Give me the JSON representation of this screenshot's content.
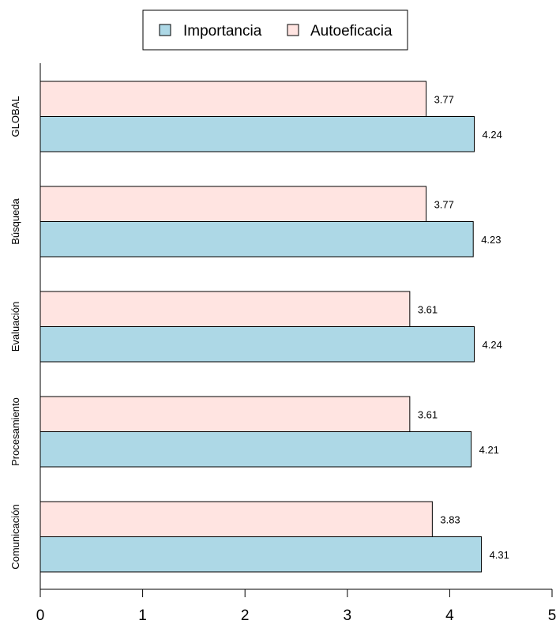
{
  "chart_data": {
    "type": "bar",
    "orientation": "horizontal",
    "categories": [
      "Comunicación",
      "Procesamiento",
      "Evaluación",
      "Búsqueda",
      "GLOBAL"
    ],
    "series": [
      {
        "name": "Importancia",
        "color": "#add8e6",
        "values": [
          4.31,
          4.21,
          4.24,
          4.23,
          4.24
        ]
      },
      {
        "name": "Autoeficacia",
        "color": "#ffe4e1",
        "values": [
          3.83,
          3.61,
          3.61,
          3.77,
          3.77
        ]
      }
    ],
    "value_labels": {
      "Importancia": [
        "4.31",
        "4.21",
        "4.24",
        "4.23",
        "4.24"
      ],
      "Autoeficacia": [
        "3.83",
        "3.61",
        "3.61",
        "3.77",
        "3.77"
      ]
    },
    "xlim": [
      0,
      5
    ],
    "xticks": [
      "0",
      "1",
      "2",
      "3",
      "4",
      "5"
    ],
    "title": "",
    "xlabel": "",
    "ylabel": "",
    "grid": false,
    "legend_position": "top-center"
  }
}
